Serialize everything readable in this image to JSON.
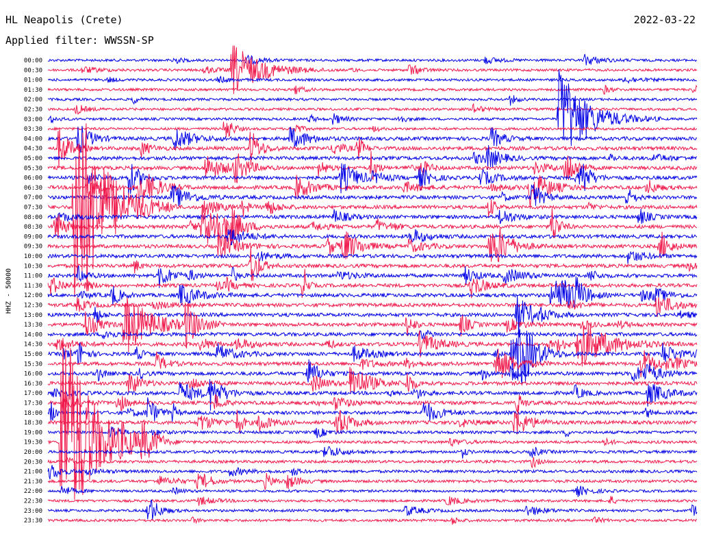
{
  "header": {
    "station": "HL Neapolis (Crete)",
    "date": "2022-03-22",
    "filter": "Applied filter: WWSSN-SP"
  },
  "chart_data": {
    "type": "helicorder",
    "ylabel": "HHZ - 50000",
    "row_labels": [
      "00:00",
      "00:30",
      "01:00",
      "01:30",
      "02:00",
      "02:30",
      "03:00",
      "03:30",
      "04:00",
      "04:30",
      "05:00",
      "05:30",
      "06:00",
      "06:30",
      "07:00",
      "07:30",
      "08:00",
      "08:30",
      "09:00",
      "09:30",
      "10:00",
      "10:30",
      "11:00",
      "11:30",
      "12:00",
      "12:30",
      "13:00",
      "13:30",
      "14:00",
      "14:30",
      "15:00",
      "15:30",
      "16:00",
      "16:30",
      "17:00",
      "17:30",
      "18:00",
      "18:30",
      "19:00",
      "19:30",
      "20:00",
      "20:30",
      "21:00",
      "21:30",
      "22:00",
      "22:30",
      "23:00",
      "23:30"
    ],
    "colors": [
      "#0000e6",
      "#f0194b"
    ],
    "x_units": "minutes within row",
    "x_range": [
      0,
      30
    ],
    "notable_events": [
      {
        "row": "00:30",
        "minute": 8.5,
        "amplitude": "large"
      },
      {
        "row": "03:00",
        "minute": 23.6,
        "amplitude": "very large"
      },
      {
        "row": "07:30",
        "minute": 1.2,
        "amplitude": "extreme"
      },
      {
        "row": "13:30",
        "minute": 3.5,
        "amplitude": "large"
      },
      {
        "row": "14:30",
        "minute": 24.5,
        "amplitude": "large"
      },
      {
        "row": "19:30",
        "minute": 0.6,
        "amplitude": "extreme"
      }
    ]
  }
}
